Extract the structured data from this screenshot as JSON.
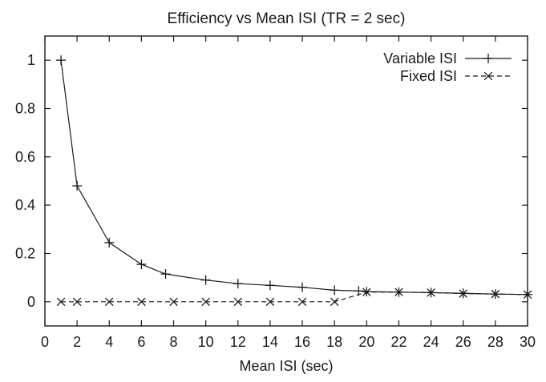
{
  "chart_data": {
    "type": "line",
    "title": "Efficiency vs Mean ISI (TR = 2 sec)",
    "xlabel": "Mean ISI (sec)",
    "ylabel": "",
    "xlim": [
      0,
      30
    ],
    "ylim": [
      -0.1,
      1.1
    ],
    "x_ticks": [
      0,
      2,
      4,
      6,
      8,
      10,
      12,
      14,
      16,
      18,
      20,
      22,
      24,
      26,
      28,
      30
    ],
    "y_ticks": [
      0,
      0.2,
      0.4,
      0.6,
      0.8,
      1
    ],
    "x_tick_labels": [
      "0",
      "2",
      "4",
      "6",
      "8",
      "10",
      "12",
      "14",
      "16",
      "18",
      "20",
      "22",
      "24",
      "26",
      "28",
      "30"
    ],
    "y_tick_labels": [
      "0",
      "0.2",
      "0.4",
      "0.6",
      "0.8",
      "1"
    ],
    "grid": false,
    "legend_position": "top-right",
    "series": [
      {
        "name": "Variable ISI",
        "line_style": "solid",
        "marker": "plus",
        "color": "#1a1a1a",
        "x": [
          1,
          2,
          4,
          6,
          7.5,
          10,
          12,
          14,
          16,
          18,
          19.5,
          20,
          22,
          24,
          26,
          28,
          30
        ],
        "y": [
          1.0,
          0.48,
          0.245,
          0.155,
          0.115,
          0.09,
          0.075,
          0.068,
          0.06,
          0.048,
          0.045,
          0.042,
          0.04,
          0.038,
          0.035,
          0.032,
          0.03
        ]
      },
      {
        "name": "Fixed ISI",
        "line_style": "dashed",
        "marker": "x",
        "color": "#1a1a1a",
        "x": [
          1,
          2,
          4,
          6,
          8,
          10,
          12,
          14,
          16,
          18,
          20,
          22,
          24,
          26,
          28,
          30
        ],
        "y": [
          0,
          0,
          0,
          0,
          0,
          0,
          0,
          0,
          0,
          0,
          0.04,
          0.04,
          0.038,
          0.034,
          0.032,
          0.03
        ]
      }
    ]
  }
}
